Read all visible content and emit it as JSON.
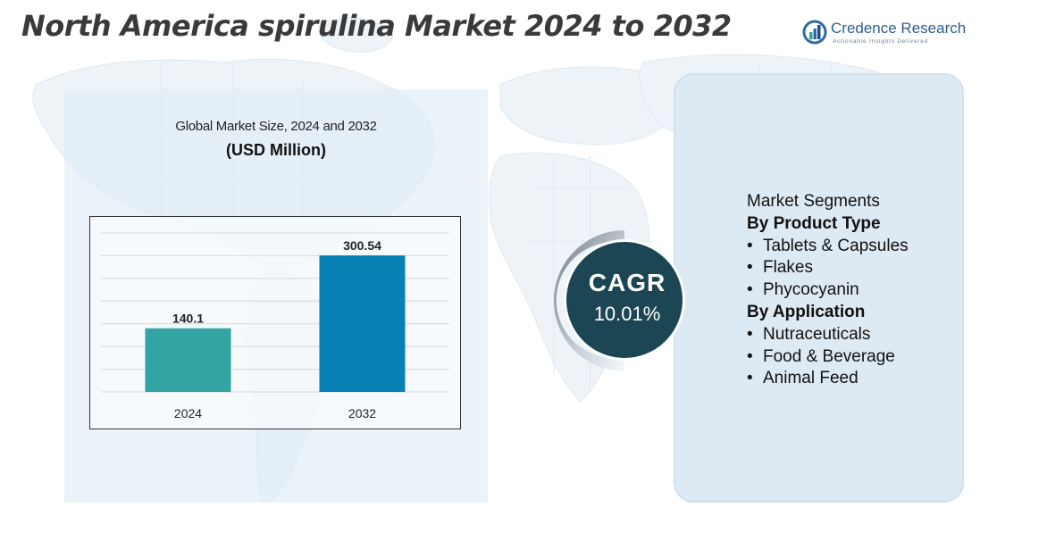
{
  "page": {
    "title": "North America spirulina Market 2024 to 2032"
  },
  "logo": {
    "name": "Credence Research",
    "tagline": "Actionable Insights Delivered"
  },
  "chart_data": {
    "type": "bar",
    "title": "Global Market Size, 2024 and 2032",
    "subtitle": "(USD Million)",
    "categories": [
      "2024",
      "2032"
    ],
    "values": [
      140.1,
      300.54
    ],
    "value_labels": [
      "140.1",
      "300.54"
    ],
    "bar_colors": [
      "#33a3a3",
      "#0880b5"
    ],
    "ylim": [
      0,
      350
    ],
    "grid": true,
    "legend": "none"
  },
  "cagr": {
    "label": "CAGR",
    "value": "10.01%"
  },
  "segments": {
    "header": "Market Segments",
    "groups": [
      {
        "title": "By Product Type",
        "items": [
          "Tablets & Capsules",
          "Flakes",
          "Phycocyanin"
        ]
      },
      {
        "title": "By Application",
        "items": [
          "Nutraceuticals",
          "Food & Beverage",
          "Animal Feed"
        ]
      }
    ]
  },
  "colors": {
    "panel_left": "#deebf7",
    "panel_right": "#dde9f3",
    "cagr_circle": "#1d4654",
    "title_text": "#3a3a3a",
    "logo_blue": "#2f5e8f"
  }
}
